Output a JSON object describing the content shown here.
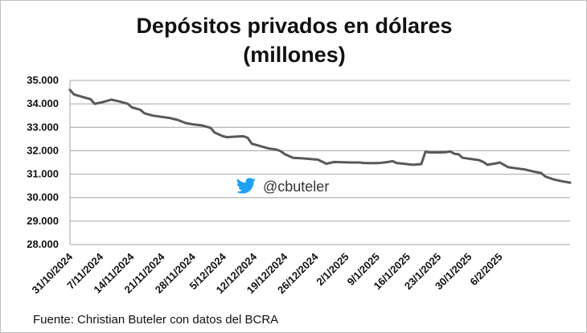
{
  "chart_data": {
    "type": "line",
    "title": "Depósitos privados en dólares",
    "subtitle": "(millones)",
    "source": "Fuente: Christian Buteler con datos del BCRA",
    "watermark": "@cbuteler",
    "ylim": [
      28000,
      35000
    ],
    "yticks": [
      28000,
      29000,
      30000,
      31000,
      32000,
      33000,
      34000,
      35000
    ],
    "ytick_labels": [
      "28.000",
      "29.000",
      "30.000",
      "31.000",
      "32.000",
      "33.000",
      "34.000",
      "35.000"
    ],
    "xtick_labels": [
      "31/10/2024",
      "7/11/2024",
      "14/11/2024",
      "21/11/2024",
      "28/11/2024",
      "5/12/2024",
      "12/12/2024",
      "19/12/2024",
      "26/12/2024",
      "2/1/2025",
      "9/1/2025",
      "16/1/2025",
      "23/1/2025",
      "30/1/2025",
      "6/2/2025"
    ],
    "x_days_range": [
      0,
      104
    ],
    "line_color": "#595959",
    "accent_color": "#1da1f2",
    "series": [
      {
        "name": "Depósitos privados en dólares",
        "points": [
          [
            0,
            34600
          ],
          [
            1,
            34400
          ],
          [
            3,
            34300
          ],
          [
            5,
            34200
          ],
          [
            6,
            34000
          ],
          [
            8,
            34080
          ],
          [
            10,
            34180
          ],
          [
            12,
            34100
          ],
          [
            14,
            34000
          ],
          [
            15,
            33850
          ],
          [
            17,
            33750
          ],
          [
            18,
            33600
          ],
          [
            20,
            33500
          ],
          [
            22,
            33450
          ],
          [
            24,
            33400
          ],
          [
            26,
            33320
          ],
          [
            28,
            33180
          ],
          [
            30,
            33120
          ],
          [
            32,
            33080
          ],
          [
            34,
            32980
          ],
          [
            35,
            32780
          ],
          [
            37,
            32620
          ],
          [
            38,
            32580
          ],
          [
            40,
            32600
          ],
          [
            42,
            32620
          ],
          [
            43,
            32550
          ],
          [
            44,
            32300
          ],
          [
            46,
            32200
          ],
          [
            48,
            32100
          ],
          [
            50,
            32050
          ],
          [
            51,
            31980
          ],
          [
            52,
            31850
          ],
          [
            54,
            31700
          ],
          [
            56,
            31680
          ],
          [
            58,
            31650
          ],
          [
            60,
            31620
          ],
          [
            62,
            31450
          ],
          [
            64,
            31520
          ],
          [
            66,
            31510
          ],
          [
            68,
            31500
          ],
          [
            70,
            31500
          ],
          [
            71,
            31480
          ],
          [
            73,
            31470
          ],
          [
            75,
            31480
          ],
          [
            77,
            31520
          ],
          [
            78,
            31560
          ],
          [
            79,
            31480
          ],
          [
            81,
            31440
          ],
          [
            83,
            31400
          ],
          [
            85,
            31430
          ],
          [
            86,
            31960
          ],
          [
            87,
            31930
          ],
          [
            89,
            31930
          ],
          [
            91,
            31940
          ],
          [
            92,
            31970
          ],
          [
            93,
            31870
          ],
          [
            94,
            31850
          ],
          [
            95,
            31700
          ],
          [
            97,
            31650
          ],
          [
            99,
            31600
          ],
          [
            100,
            31520
          ],
          [
            101,
            31400
          ],
          [
            102,
            31430
          ],
          [
            103,
            31460
          ],
          [
            104,
            31500
          ],
          [
            105,
            31400
          ],
          [
            106,
            31300
          ],
          [
            108,
            31250
          ],
          [
            110,
            31200
          ],
          [
            112,
            31120
          ],
          [
            114,
            31050
          ],
          [
            115,
            30900
          ],
          [
            117,
            30780
          ],
          [
            119,
            30700
          ],
          [
            121,
            30640
          ]
        ]
      }
    ]
  }
}
